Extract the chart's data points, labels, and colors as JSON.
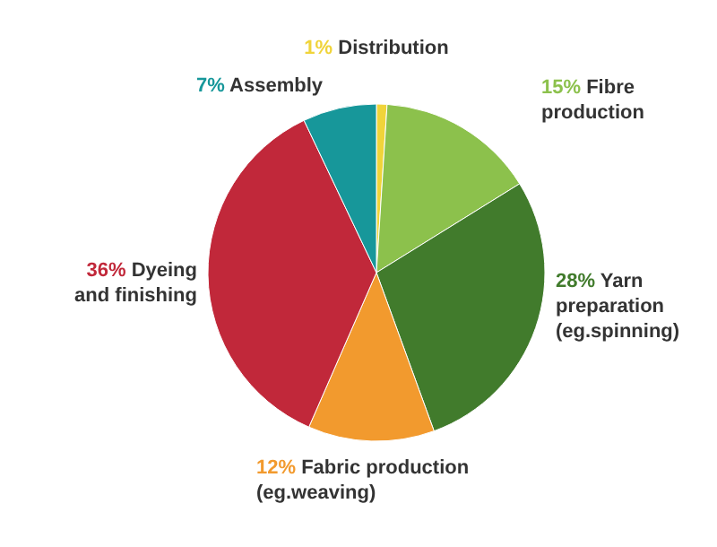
{
  "chart_data": {
    "type": "pie",
    "categories": [
      "Distribution",
      "Fibre\nproduction",
      "Yarn\npreparation\n(eg.spinning)",
      "Fabric production\n(eg.weaving)",
      "Dyeing\nand finishing",
      "Assembly"
    ],
    "values": [
      1,
      15,
      28,
      12,
      36,
      7
    ],
    "value_labels": [
      "1%",
      "15%",
      "28%",
      "12%",
      "36%",
      "7%"
    ],
    "colors": [
      "#f0d43a",
      "#8cc14c",
      "#417b2c",
      "#f29a2e",
      "#c1283a",
      "#17979a"
    ]
  }
}
